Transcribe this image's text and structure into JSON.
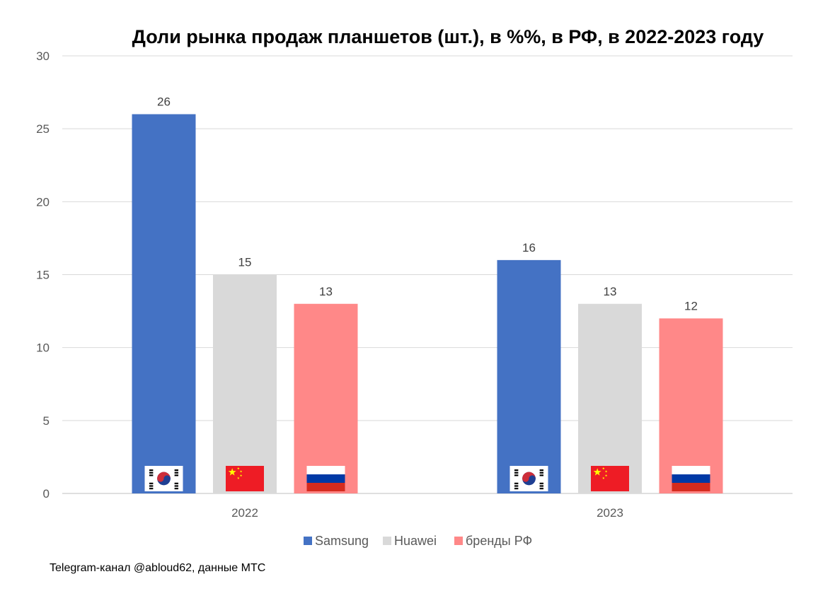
{
  "chart_data": {
    "type": "bar",
    "title": "Доли рынка продаж планшетов (шт.), в %%, в РФ, в 2022-2023 году",
    "categories": [
      "2022",
      "2023"
    ],
    "series": [
      {
        "name": "Samsung",
        "values": [
          26,
          16
        ],
        "color": "#4472C4",
        "flag": "south-korea-flag-icon"
      },
      {
        "name": "Huawei",
        "values": [
          15,
          13
        ],
        "color": "#D9D9D9",
        "flag": "china-flag-icon"
      },
      {
        "name": "бренды РФ",
        "values": [
          13,
          12
        ],
        "color": "#FF8888",
        "flag": "russia-flag-icon"
      }
    ],
    "ylim": [
      0,
      30
    ],
    "yticks": [
      "0",
      "5",
      "10",
      "15",
      "20",
      "25",
      "30"
    ],
    "xlabel": "",
    "ylabel": "",
    "grid": true,
    "legend": "bottom"
  },
  "footer": {
    "source": "Telegram-канал @abloud62, данные МТС"
  }
}
